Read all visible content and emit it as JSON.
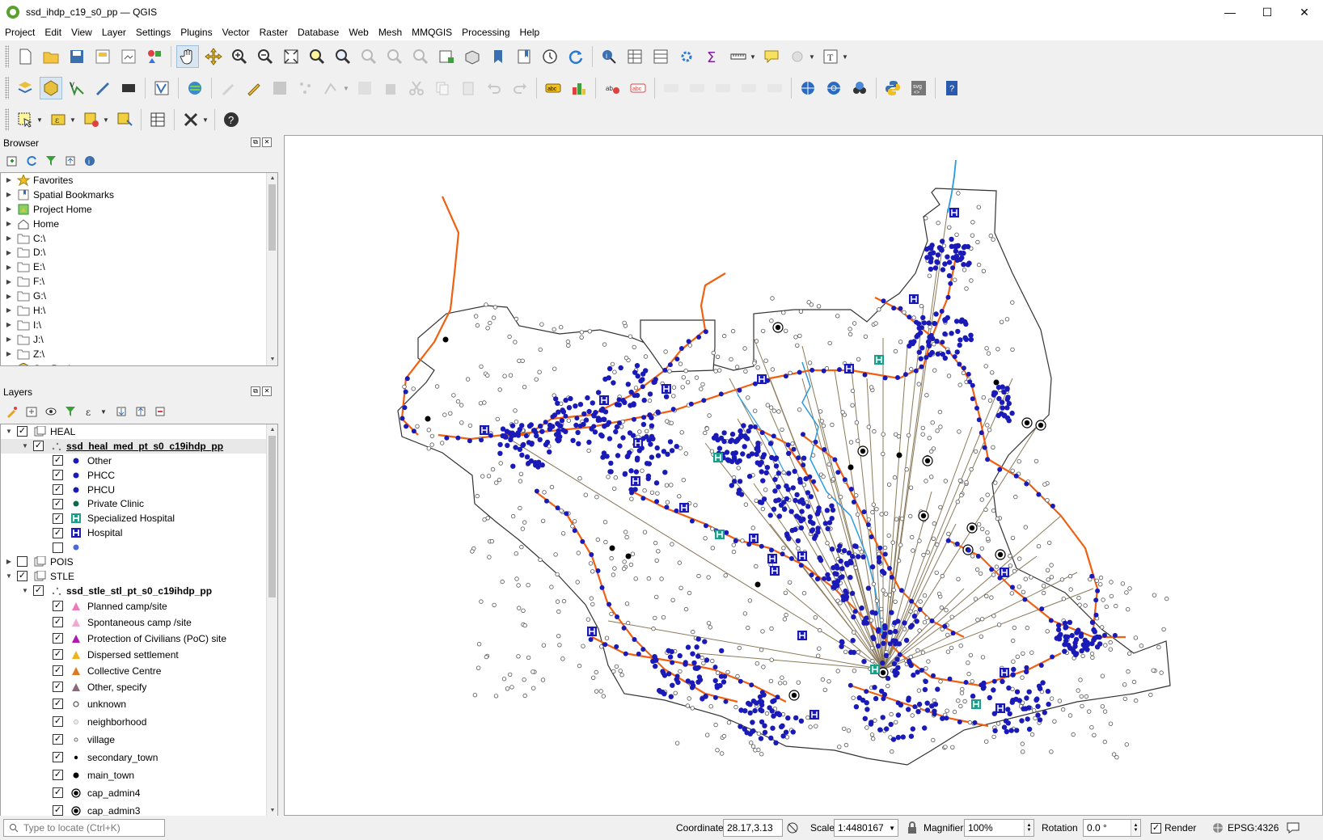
{
  "window": {
    "title": "ssd_ihdp_c19_s0_pp — QGIS",
    "minimize": "—",
    "maximize": "☐",
    "close": "✕"
  },
  "menu": [
    "Project",
    "Edit",
    "View",
    "Layer",
    "Settings",
    "Plugins",
    "Vector",
    "Raster",
    "Database",
    "Web",
    "Mesh",
    "MMQGIS",
    "Processing",
    "Help"
  ],
  "browser": {
    "title": "Browser",
    "items": [
      {
        "label": "Favorites",
        "icon": "star-icon"
      },
      {
        "label": "Spatial Bookmarks",
        "icon": "bookmark-icon"
      },
      {
        "label": "Project Home",
        "icon": "project-home-icon"
      },
      {
        "label": "Home",
        "icon": "home-icon"
      },
      {
        "label": "C:\\",
        "icon": "folder-icon"
      },
      {
        "label": "D:\\",
        "icon": "folder-icon"
      },
      {
        "label": "E:\\",
        "icon": "folder-icon"
      },
      {
        "label": "F:\\",
        "icon": "folder-icon"
      },
      {
        "label": "G:\\",
        "icon": "folder-icon"
      },
      {
        "label": "H:\\",
        "icon": "folder-icon"
      },
      {
        "label": "I:\\",
        "icon": "folder-icon"
      },
      {
        "label": "J:\\",
        "icon": "folder-icon"
      },
      {
        "label": "Z:\\",
        "icon": "folder-icon"
      },
      {
        "label": "GeoPackage",
        "icon": "geopackage-icon"
      }
    ]
  },
  "layers": {
    "title": "Layers",
    "heal_group": "HEAL",
    "heal_layer": "ssd_heal_med_pt_s0_c19ihdp_pp",
    "heal_items": [
      {
        "label": "Other",
        "symbol": "dot",
        "color": "#1a1ab8"
      },
      {
        "label": "PHCC",
        "symbol": "dot",
        "color": "#1a1ab8"
      },
      {
        "label": "PHCU",
        "symbol": "dot",
        "color": "#1a1ab8"
      },
      {
        "label": "Private Clinic",
        "symbol": "dot",
        "color": "#0e6b4a"
      },
      {
        "label": "Specialized Hospital",
        "symbol": "H",
        "color": "#1aa08a"
      },
      {
        "label": "Hospital",
        "symbol": "H",
        "color": "#1a1ab8"
      },
      {
        "label": "",
        "symbol": "dot",
        "color": "#4a6ad8"
      }
    ],
    "pois_group": "POIS",
    "stle_group": "STLE",
    "stle_layer": "ssd_stle_stl_pt_s0_c19ihdp_pp",
    "stle_items": [
      {
        "label": "Planned camp/site",
        "symbol": "tri",
        "color": "#f07ab8"
      },
      {
        "label": "Spontaneous camp /site",
        "symbol": "tri",
        "color": "#f3a8d0"
      },
      {
        "label": "Protection of Civilians (PoC) site",
        "symbol": "tri",
        "color": "#b018b0"
      },
      {
        "label": "Dispersed settlement",
        "symbol": "tri",
        "color": "#f0b020"
      },
      {
        "label": "Collective Centre",
        "symbol": "tri",
        "color": "#e07a20"
      },
      {
        "label": "Other, specify",
        "symbol": "tri",
        "color": "#8a6a7a"
      },
      {
        "label": "unknown",
        "symbol": "circle",
        "color": "#555555"
      },
      {
        "label": "neighborhood",
        "symbol": "circle-light",
        "color": "#bbbbbb"
      },
      {
        "label": "village",
        "symbol": "circle-small",
        "color": "#666666"
      },
      {
        "label": "secondary_town",
        "symbol": "dot-small",
        "color": "#000000"
      },
      {
        "label": "main_town",
        "symbol": "dot",
        "color": "#000000"
      },
      {
        "label": "cap_admin4",
        "symbol": "ring",
        "color": "#000000"
      },
      {
        "label": "cap_admin3",
        "symbol": "ring",
        "color": "#000000"
      }
    ]
  },
  "status": {
    "locate_placeholder": "Type to locate (Ctrl+K)",
    "coordinate_label": "Coordinate",
    "coordinate_value": "28.17,3.13",
    "scale_label": "Scale",
    "scale_value": "1:4480167",
    "magnifier_label": "Magnifier",
    "magnifier_value": "100%",
    "rotation_label": "Rotation",
    "rotation_value": "0.0 °",
    "render_label": "Render",
    "crs_label": "EPSG:4326"
  },
  "colors": {
    "health_points": "#1a1ab8",
    "roads": "#f06010",
    "rivers": "#2a9ae0",
    "connection_lines": "#8a7a5a",
    "boundary": "#333333"
  }
}
